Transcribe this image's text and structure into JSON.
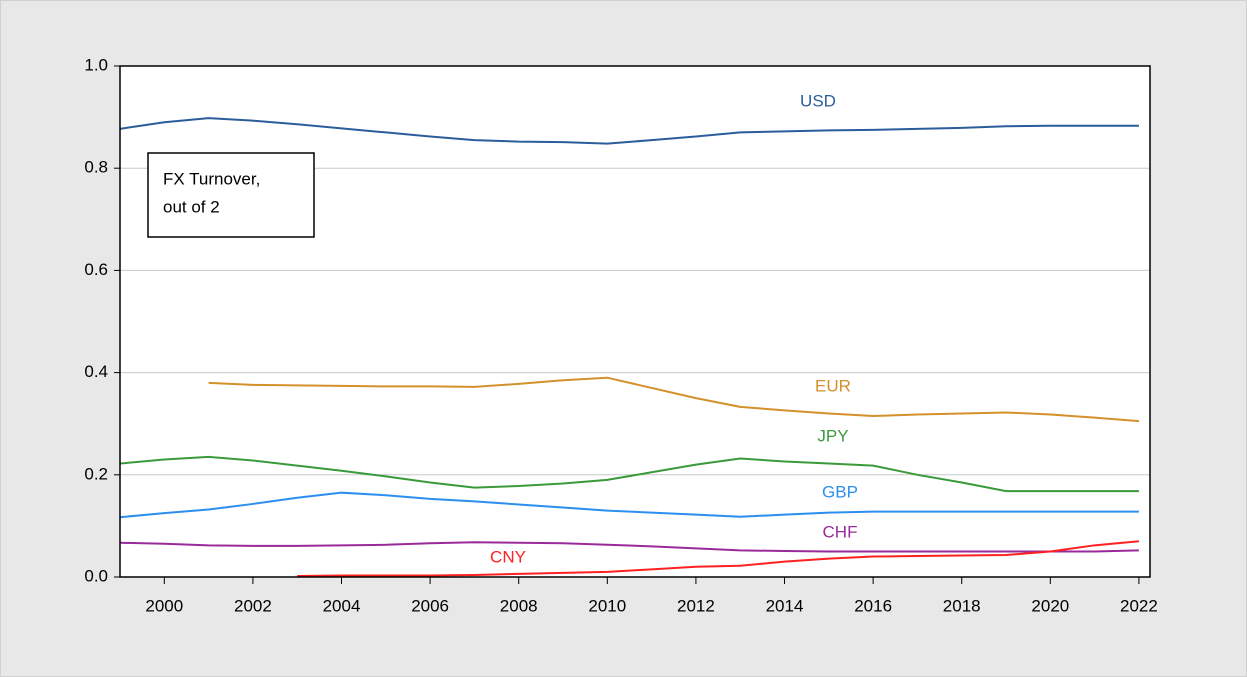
{
  "chart_data": {
    "type": "line",
    "annotation": [
      "FX Turnover,",
      "out of 2"
    ],
    "x": [
      1999,
      2000,
      2001,
      2002,
      2003,
      2004,
      2005,
      2006,
      2007,
      2008,
      2009,
      2010,
      2011,
      2012,
      2013,
      2014,
      2015,
      2016,
      2017,
      2018,
      2019,
      2020,
      2021,
      2022
    ],
    "series": [
      {
        "name": "USD",
        "color": "#2b5d9b",
        "values": [
          0.877,
          0.89,
          0.898,
          0.893,
          0.886,
          0.878,
          0.87,
          0.862,
          0.855,
          0.852,
          0.851,
          0.848,
          0.855,
          0.862,
          0.87,
          0.872,
          0.874,
          0.875,
          0.877,
          0.879,
          0.882,
          0.883,
          0.883,
          0.883
        ]
      },
      {
        "name": "EUR",
        "color": "#d4902a",
        "values": [
          null,
          null,
          0.38,
          0.376,
          0.375,
          0.374,
          0.373,
          0.373,
          0.372,
          0.378,
          0.385,
          0.39,
          0.37,
          0.35,
          0.333,
          0.326,
          0.32,
          0.315,
          0.318,
          0.32,
          0.322,
          0.318,
          0.312,
          0.305
        ]
      },
      {
        "name": "JPY",
        "color": "#3a9a3a",
        "values": [
          0.222,
          0.23,
          0.235,
          0.228,
          0.218,
          0.208,
          0.197,
          0.185,
          0.175,
          0.178,
          0.183,
          0.19,
          0.205,
          0.22,
          0.232,
          0.226,
          0.222,
          0.218,
          0.2,
          0.185,
          0.168,
          0.168,
          0.168,
          0.168
        ]
      },
      {
        "name": "GBP",
        "color": "#2c8ff0",
        "values": [
          0.117,
          0.125,
          0.132,
          0.143,
          0.155,
          0.165,
          0.16,
          0.153,
          0.148,
          0.142,
          0.136,
          0.13,
          0.126,
          0.122,
          0.118,
          0.122,
          0.126,
          0.128,
          0.128,
          0.128,
          0.128,
          0.128,
          0.128,
          0.128
        ]
      },
      {
        "name": "CHF",
        "color": "#9a2a9a",
        "values": [
          0.067,
          0.065,
          0.062,
          0.061,
          0.061,
          0.062,
          0.063,
          0.066,
          0.068,
          0.067,
          0.066,
          0.063,
          0.06,
          0.056,
          0.052,
          0.051,
          0.05,
          0.05,
          0.05,
          0.05,
          0.05,
          0.05,
          0.05,
          0.052
        ]
      },
      {
        "name": "CNY",
        "color": "#ff2020",
        "values": [
          null,
          null,
          null,
          null,
          0.002,
          0.003,
          0.003,
          0.003,
          0.004,
          0.006,
          0.008,
          0.01,
          0.015,
          0.02,
          0.022,
          0.03,
          0.036,
          0.04,
          0.041,
          0.042,
          0.043,
          0.05,
          0.062,
          0.07
        ]
      }
    ],
    "xlim": [
      1999,
      2022.25
    ],
    "xticks": [
      2000,
      2002,
      2004,
      2006,
      2008,
      2010,
      2012,
      2014,
      2016,
      2018,
      2020,
      2022
    ],
    "ylim": [
      0,
      1
    ],
    "yticks": [
      {
        "value": 0,
        "label": "0.0"
      },
      0.2,
      0.4,
      0.6,
      0.8,
      {
        "value": 1,
        "label": "1.0"
      }
    ],
    "grid": true
  }
}
